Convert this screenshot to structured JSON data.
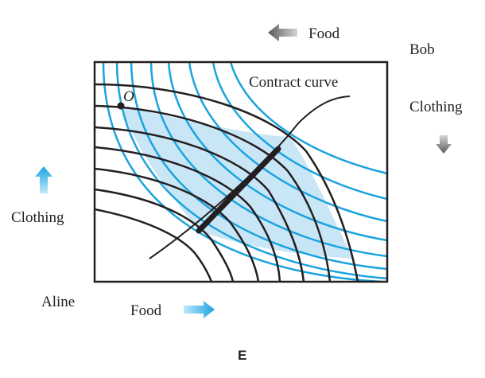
{
  "labels": {
    "food_top": "Food",
    "bob": "Bob",
    "clothing_right": "Clothing",
    "clothing_left": "Clothing",
    "aline": "Aline",
    "food_bottom": "Food",
    "contract_curve": "Contract curve",
    "point_o": "O",
    "figure_label": "E"
  },
  "colors": {
    "aline_curves": "#231f20",
    "bob_curves": "#1aa3dd",
    "lens_fill": "#c9e6f7",
    "contract_curve": "#231f20",
    "arrow_gray": "#8a8a8a",
    "arrow_blue": "#3fb6ea"
  },
  "icons": {
    "food_top_arrow": "arrow-left-icon",
    "clothing_right_arrow": "arrow-down-icon",
    "clothing_left_arrow": "arrow-up-icon",
    "food_bottom_arrow": "arrow-right-icon"
  }
}
